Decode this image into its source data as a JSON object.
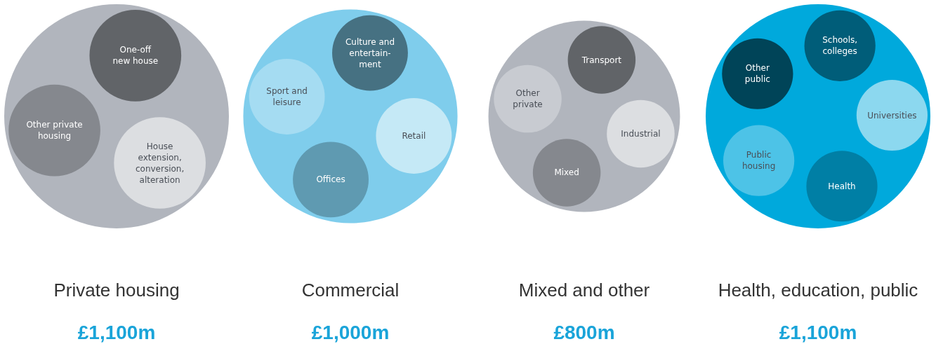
{
  "chart_data": [
    {
      "type": "other",
      "categories": [
        "Private housing"
      ],
      "values": [
        1100
      ],
      "value_labels": [
        "£1,100m"
      ],
      "colors": [
        "#b1b5bd"
      ],
      "annotations": [
        "One-off\nnew house",
        "House\nextension,\nconversion,\nalteration",
        "Other private\nhousing"
      ]
    },
    {
      "type": "other",
      "categories": [
        "Commercial"
      ],
      "values": [
        1000
      ],
      "value_labels": [
        "£1,000m"
      ],
      "colors": [
        "#7fcdec"
      ],
      "annotations": [
        "Culture and\nentertain-\nment",
        "Retail",
        "Offices",
        "Sport and\nleisure"
      ]
    },
    {
      "type": "other",
      "categories": [
        "Mixed and other"
      ],
      "values": [
        800
      ],
      "value_labels": [
        "£800m"
      ],
      "colors": [
        "#b1b5bd"
      ],
      "annotations": [
        "Transport",
        "Industrial",
        "Mixed",
        "Other\nprivate"
      ]
    },
    {
      "type": "other",
      "categories": [
        "Health, education, public"
      ],
      "values": [
        1100
      ],
      "value_labels": [
        "£1,100m"
      ],
      "colors": [
        "#00a9dc"
      ],
      "annotations": [
        "Schools,\ncolleges",
        "Universities",
        "Health",
        "Public\nhousing",
        "Other\npublic"
      ]
    }
  ]
}
